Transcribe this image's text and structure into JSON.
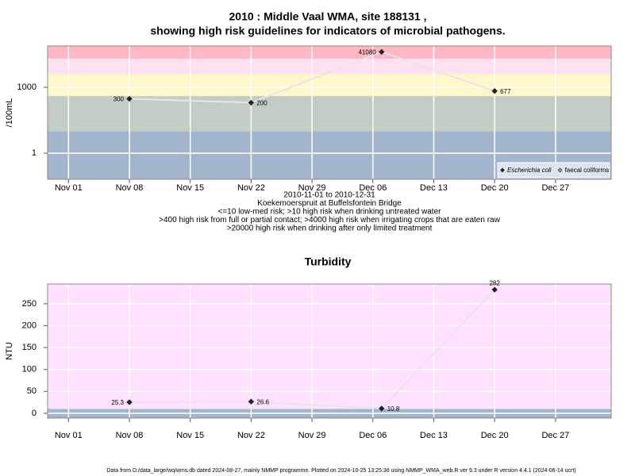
{
  "chart_data": [
    {
      "type": "line",
      "title": "2010 : Middle Vaal WMA, site 188131 ,",
      "subtitle": "showing high risk guidelines for indicators of microbial pathogens.",
      "ylabel": "/100mL",
      "log_y": true,
      "ylim": [
        0.065,
        76000
      ],
      "yticks": [
        1,
        1000
      ],
      "xlim": [
        "2010-11-01",
        "2010-12-31"
      ],
      "xticks": [
        {
          "value": "2010-11-01",
          "label": "Nov 01"
        },
        {
          "value": "2010-11-08",
          "label": "Nov 08"
        },
        {
          "value": "2010-11-15",
          "label": "Nov 15"
        },
        {
          "value": "2010-11-22",
          "label": "Nov 22"
        },
        {
          "value": "2010-11-29",
          "label": "Nov 29"
        },
        {
          "value": "2010-12-06",
          "label": "Dec 06"
        },
        {
          "value": "2010-12-13",
          "label": "Dec 13"
        },
        {
          "value": "2010-12-20",
          "label": "Dec 20"
        },
        {
          "value": "2010-12-27",
          "label": "Dec 27"
        }
      ],
      "x": [
        "2010-11-08",
        "2010-11-22",
        "2010-12-07",
        "2010-12-20"
      ],
      "series": [
        {
          "name": "Escherichia coli",
          "color": "#222222",
          "line_color": "#e6e6e6",
          "filled": true,
          "values": [
            300,
            200,
            41080,
            677
          ]
        },
        {
          "name": "faecal coliforms",
          "color": "#222222",
          "line_color": "#e6e6e6",
          "filled": false,
          "values": [
            null,
            null,
            null,
            null
          ]
        }
      ],
      "bands": [
        {
          "from": 0.065,
          "to": 10,
          "color": "#a3b5cd"
        },
        {
          "from": 10,
          "to": 400,
          "color": "#c3cdc4"
        },
        {
          "from": 400,
          "to": 4000,
          "color": "#fff7c9"
        },
        {
          "from": 4000,
          "to": 20000,
          "color": "#ffe0f3"
        },
        {
          "from": 20000,
          "to": 76000,
          "color": "#ffb7c5"
        }
      ],
      "grid": true,
      "legend": "bottom-right",
      "notes": [
        "2010-11-01 to 2010-12-31",
        "Koekemoerspruit at Buffelsfontein Bridge",
        "<=10 low-med risk; >10 high risk when drinking untreated water",
        ">400 high risk from full or partial contact; >4000 high risk when irrigating crops that are eaten raw",
        ">20000 high risk when drinking after only limited treatment"
      ]
    },
    {
      "type": "line",
      "title": "Turbidity",
      "ylabel": "NTU",
      "log_y": false,
      "ylim": [
        -11,
        295
      ],
      "yticks": [
        0,
        50,
        100,
        150,
        200,
        250
      ],
      "xlim": [
        "2010-11-01",
        "2010-12-31"
      ],
      "xticks": [
        {
          "value": "2010-11-01",
          "label": "Nov 01"
        },
        {
          "value": "2010-11-08",
          "label": "Nov 08"
        },
        {
          "value": "2010-11-15",
          "label": "Nov 15"
        },
        {
          "value": "2010-11-22",
          "label": "Nov 22"
        },
        {
          "value": "2010-11-29",
          "label": "Nov 29"
        },
        {
          "value": "2010-12-06",
          "label": "Dec 06"
        },
        {
          "value": "2010-12-13",
          "label": "Dec 13"
        },
        {
          "value": "2010-12-20",
          "label": "Dec 20"
        },
        {
          "value": "2010-12-27",
          "label": "Dec 27"
        }
      ],
      "x": [
        "2010-11-08",
        "2010-11-22",
        "2010-12-07",
        "2010-12-20"
      ],
      "series": [
        {
          "color": "#222222",
          "line_color": "#e6e6e6",
          "filled": true,
          "values": [
            25.3,
            26.6,
            10.8,
            282
          ]
        }
      ],
      "bands": [
        {
          "from": -11,
          "to": 10,
          "color": "#a3b5cd"
        },
        {
          "from": 10,
          "to": 295,
          "color": "#ffe0ff"
        }
      ],
      "grid": true
    }
  ],
  "footer": "Data from D:/data_large/wq/wms.db dated 2024-08-27, mainly NMMP programme. Plotted on 2024-10-25 13:25:36 using NMMP_WMA_web.R ver 9.3 under R version 4.4.1 (2024-06-14 ucrt)"
}
